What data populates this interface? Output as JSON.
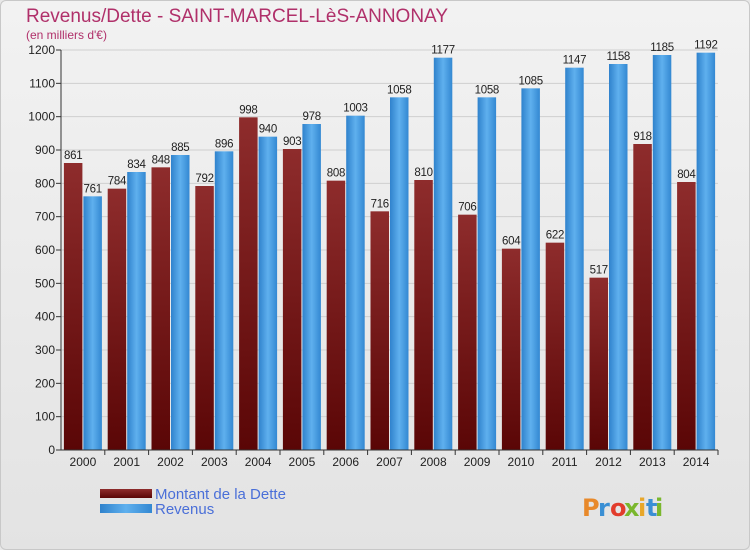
{
  "chart_data": {
    "type": "bar",
    "title": "Revenus/Dette - SAINT-MARCEL-LèS-ANNONAY",
    "subtitle": "(en milliers d'€)",
    "categories": [
      "2000",
      "2001",
      "2002",
      "2003",
      "2004",
      "2005",
      "2006",
      "2007",
      "2008",
      "2009",
      "2010",
      "2011",
      "2012",
      "2013",
      "2014"
    ],
    "series": [
      {
        "name": "Montant de la Dette",
        "color": "#7a1c1c",
        "values": [
          861,
          784,
          848,
          792,
          998,
          903,
          808,
          716,
          810,
          706,
          604,
          622,
          517,
          918,
          804
        ]
      },
      {
        "name": "Revenus",
        "color": "#3b93dc",
        "values": [
          761,
          834,
          885,
          896,
          940,
          978,
          1003,
          1058,
          1177,
          1058,
          1085,
          1147,
          1158,
          1185,
          1192
        ]
      }
    ],
    "yticks": [
      0,
      100,
      200,
      300,
      400,
      500,
      600,
      700,
      800,
      900,
      1000,
      1100,
      1200
    ],
    "ylim": [
      0,
      1200
    ],
    "grid": true,
    "legend_position": "bottom-left"
  },
  "branding": {
    "logo_text": "Proxiti"
  }
}
